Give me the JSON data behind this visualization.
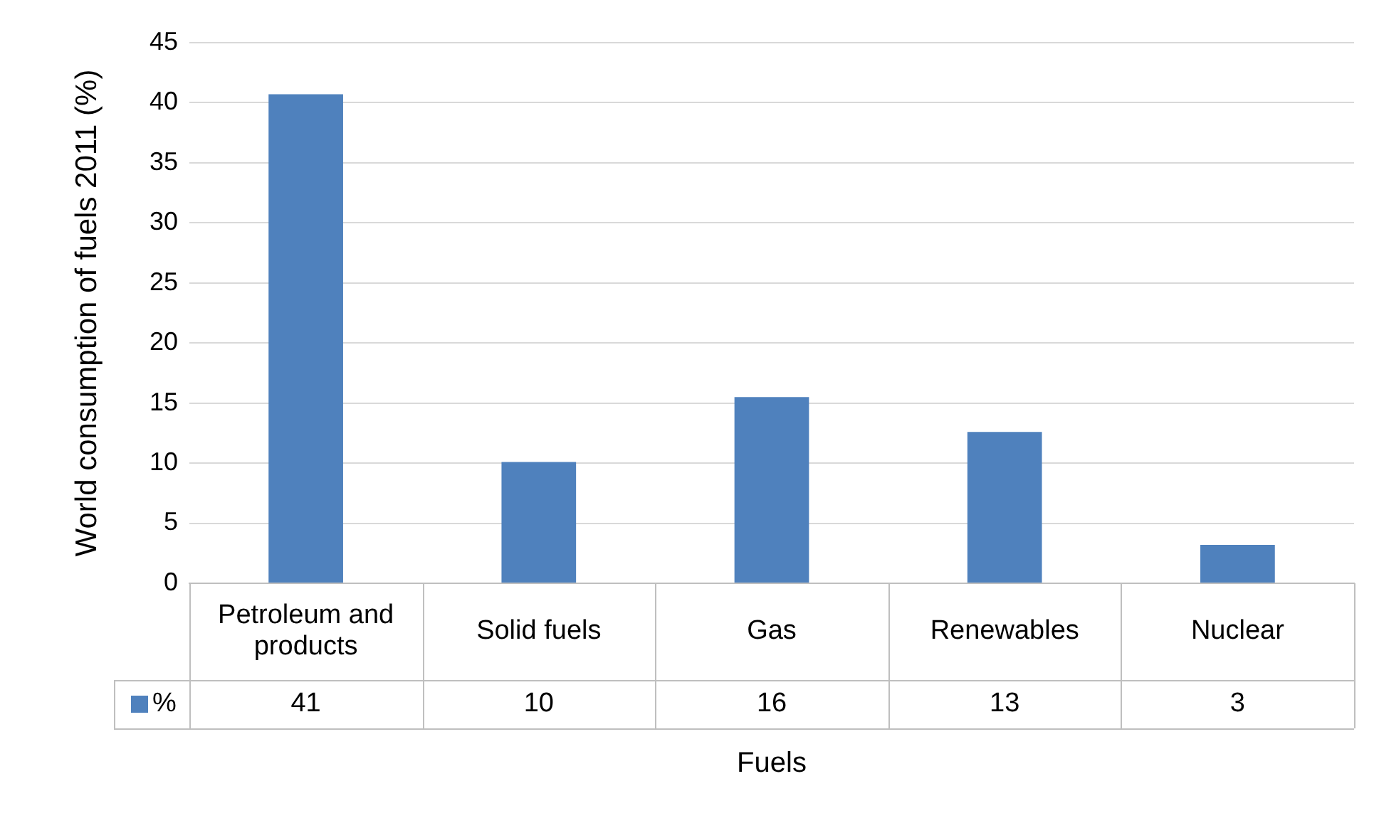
{
  "chart_data": {
    "type": "bar",
    "ylabel": "World consumption of fuels 2011 (%)",
    "xlabel": "Fuels",
    "categories": [
      "Petroleum and products",
      "Solid fuels",
      "Gas",
      "Renewables",
      "Nuclear"
    ],
    "series": [
      {
        "name": "%",
        "color": "#4f81bd",
        "values": [
          40.7,
          10.1,
          15.5,
          12.6,
          3.2
        ],
        "value_labels": [
          "41",
          "10",
          "16",
          "13",
          "3"
        ]
      }
    ],
    "ylim": [
      0,
      45
    ],
    "yticks": [
      0,
      5,
      10,
      15,
      20,
      25,
      30,
      35,
      40,
      45
    ],
    "grid": "y",
    "legend": "bottom"
  }
}
